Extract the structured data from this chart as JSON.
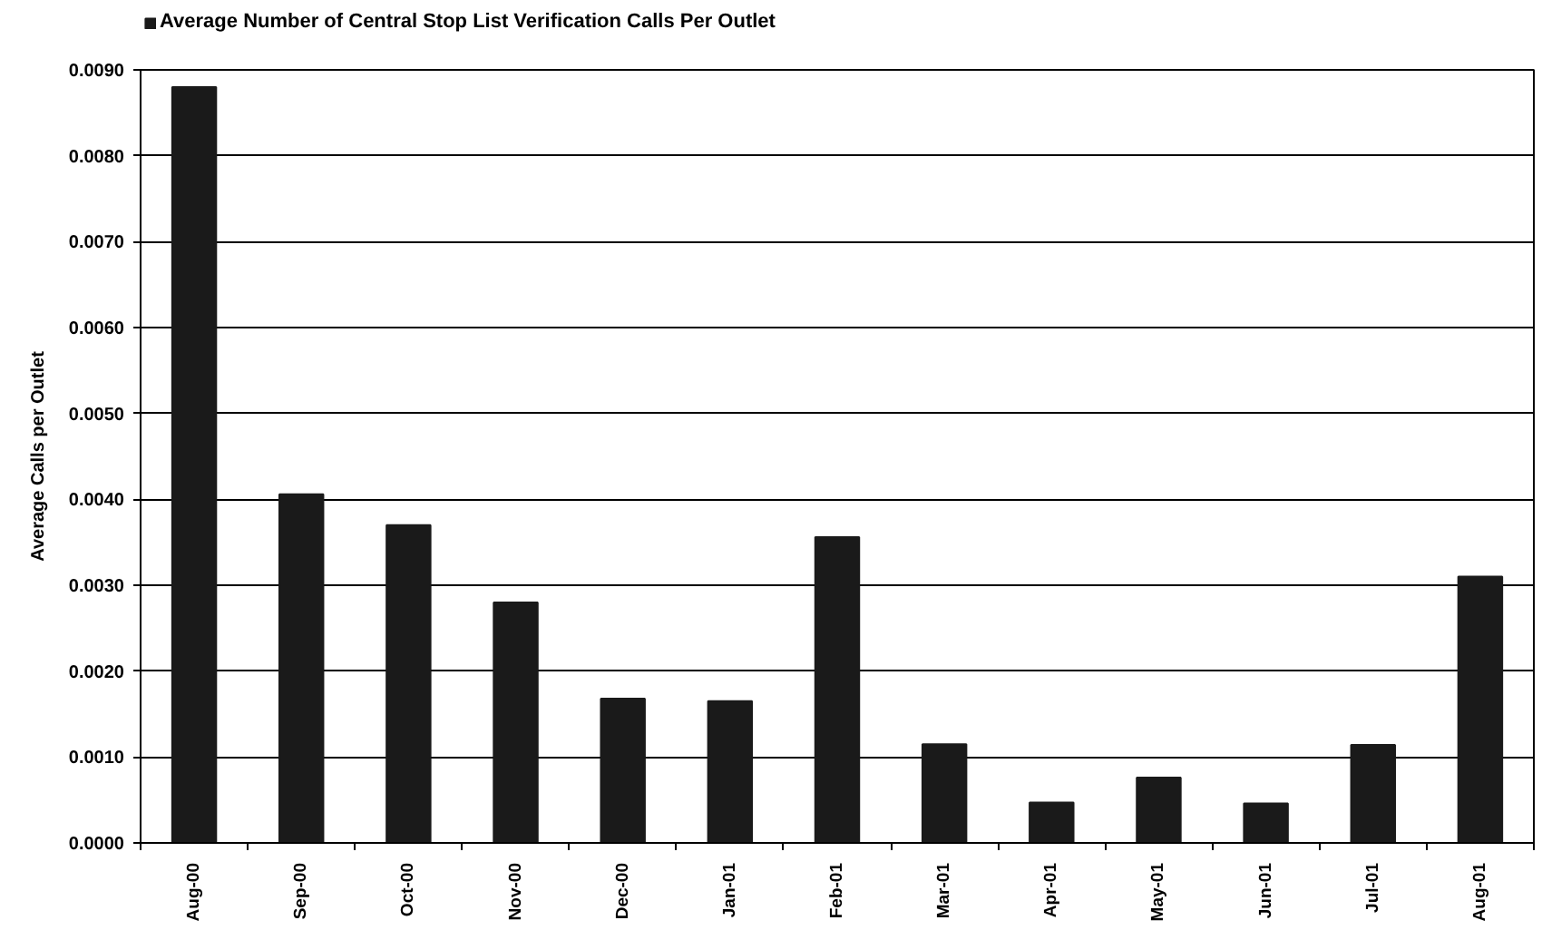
{
  "chart_data": {
    "type": "bar",
    "ylabel": "Average Calls per Outlet",
    "categories": [
      "Aug-00",
      "Sep-00",
      "Oct-00",
      "Nov-00",
      "Dec-00",
      "Jan-01",
      "Feb-01",
      "Mar-01",
      "Apr-01",
      "May-01",
      "Jun-01",
      "Jul-01",
      "Aug-01"
    ],
    "series": [
      {
        "name": "Average Number of Central Stop List Verification Calls Per Outlet",
        "color": "#1a1a1a",
        "values": [
          0.0088,
          0.00406,
          0.0037,
          0.0028,
          0.00168,
          0.00165,
          0.00356,
          0.00115,
          0.00047,
          0.00076,
          0.00046,
          0.00114,
          0.0031
        ]
      }
    ],
    "ylim": [
      0,
      0.009
    ],
    "yticks": [
      {
        "value": 0,
        "label": "0.0000"
      },
      {
        "value": 0.001,
        "label": "0.0010"
      },
      {
        "value": 0.002,
        "label": "0.0020"
      },
      {
        "value": 0.003,
        "label": "0.0030"
      },
      {
        "value": 0.004,
        "label": "0.0040"
      },
      {
        "value": 0.005,
        "label": "0.0050"
      },
      {
        "value": 0.006,
        "label": "0.0060"
      },
      {
        "value": 0.007,
        "label": "0.0070"
      },
      {
        "value": 0.008,
        "label": "0.0080"
      },
      {
        "value": 0.009,
        "label": "0.0090"
      }
    ],
    "grid": "y",
    "legend": "top left"
  }
}
